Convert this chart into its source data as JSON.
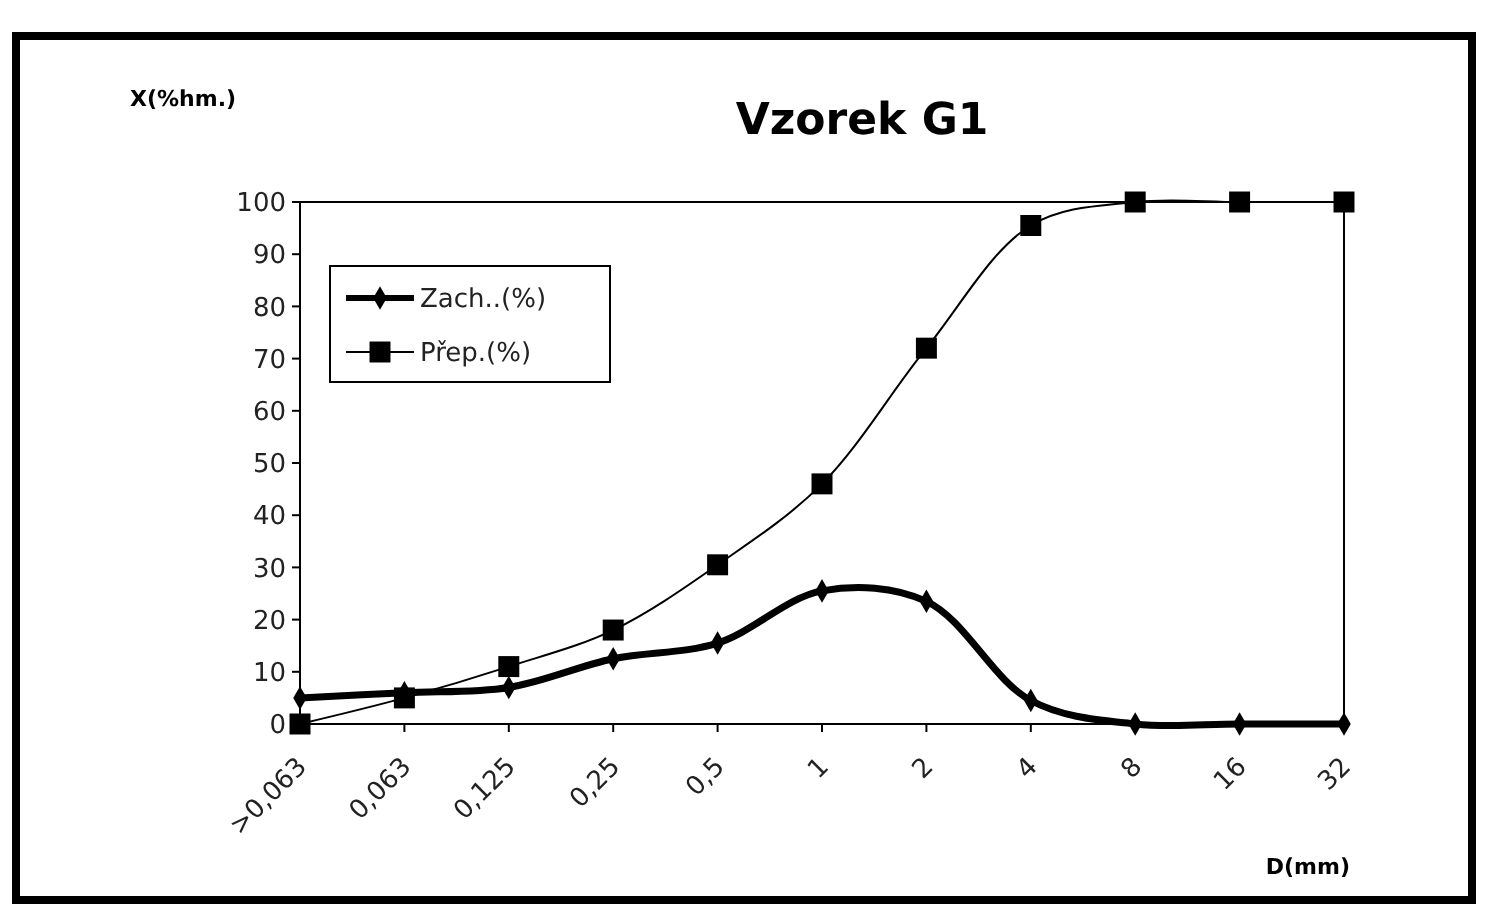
{
  "chart_data": {
    "type": "line",
    "title": "Vzorek G1",
    "xlabel": "D(mm)",
    "ylabel": "X(%hm.)",
    "categories": [
      ">0,063",
      "0,063",
      "0,125",
      "0,25",
      "0,5",
      "1",
      "2",
      "4",
      "8",
      "16",
      "32"
    ],
    "series": [
      {
        "name": "Zach..(%)",
        "color": "#000000",
        "marker": "diamond",
        "values": [
          5,
          6,
          7,
          12.5,
          15.5,
          25.5,
          23.5,
          4.5,
          0,
          0,
          0
        ]
      },
      {
        "name": "Přep.(%)",
        "color": "#000000",
        "marker": "square",
        "values": [
          0,
          5,
          11,
          18,
          30.5,
          46,
          72,
          95.5,
          100,
          100,
          100
        ]
      }
    ],
    "ylim": [
      0,
      100
    ],
    "yticks": [
      0,
      10,
      20,
      30,
      40,
      50,
      60,
      70,
      80,
      90,
      100
    ],
    "grid": false,
    "legend": "top left"
  }
}
